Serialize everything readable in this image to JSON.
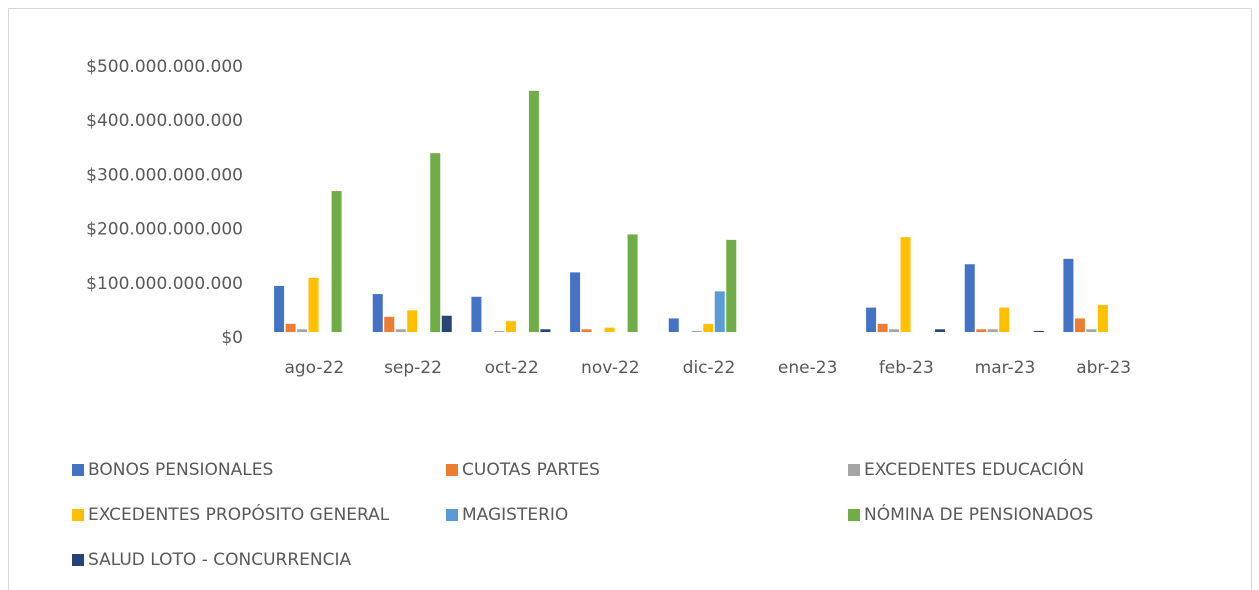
{
  "chart_data": {
    "type": "bar",
    "categories": [
      "ago-22",
      "sep-22",
      "oct-22",
      "nov-22",
      "dic-22",
      "ene-23",
      "feb-23",
      "mar-23",
      "abr-23"
    ],
    "series": [
      {
        "name": "BONOS PENSIONALES",
        "color": "#4472c4",
        "values": [
          85000000000,
          70000000000,
          65000000000,
          110000000000,
          25000000000,
          0,
          45000000000,
          125000000000,
          135000000000
        ]
      },
      {
        "name": "CUOTAS PARTES",
        "color": "#ed7d31",
        "values": [
          15000000000,
          28000000000,
          0,
          5000000000,
          0,
          0,
          15000000000,
          5000000000,
          25000000000
        ]
      },
      {
        "name": "EXCEDENTES EDUCACIÓN",
        "color": "#a5a5a5",
        "values": [
          5000000000,
          5000000000,
          2000000000,
          0,
          2000000000,
          0,
          5000000000,
          5000000000,
          5000000000
        ]
      },
      {
        "name": "EXCEDENTES PROPÓSITO GENERAL",
        "color": "#ffc000",
        "values": [
          100000000000,
          40000000000,
          20000000000,
          8000000000,
          15000000000,
          0,
          175000000000,
          45000000000,
          50000000000
        ]
      },
      {
        "name": "MAGISTERIO",
        "color": "#5b9bd5",
        "values": [
          0,
          0,
          0,
          0,
          75000000000,
          0,
          0,
          0,
          0
        ]
      },
      {
        "name": "NÓMINA DE PENSIONADOS",
        "color": "#70ad47",
        "values": [
          260000000000,
          330000000000,
          445000000000,
          180000000000,
          170000000000,
          0,
          0,
          0,
          0
        ]
      },
      {
        "name": "SALUD LOTO - CONCURRENCIA",
        "color": "#264478",
        "values": [
          0,
          30000000000,
          5000000000,
          0,
          0,
          0,
          5000000000,
          2000000000,
          0
        ]
      }
    ],
    "ylim": [
      0,
      500000000000
    ],
    "yticks": [
      {
        "value": 0,
        "label": "$0"
      },
      {
        "value": 100000000000,
        "label": "$100.000.000.000"
      },
      {
        "value": 200000000000,
        "label": "$200.000.000.000"
      },
      {
        "value": 300000000000,
        "label": "$300.000.000.000"
      },
      {
        "value": 400000000000,
        "label": "$400.000.000.000"
      },
      {
        "value": 500000000000,
        "label": "$500.000.000.000"
      }
    ],
    "grid": false,
    "legend": "bottom"
  }
}
